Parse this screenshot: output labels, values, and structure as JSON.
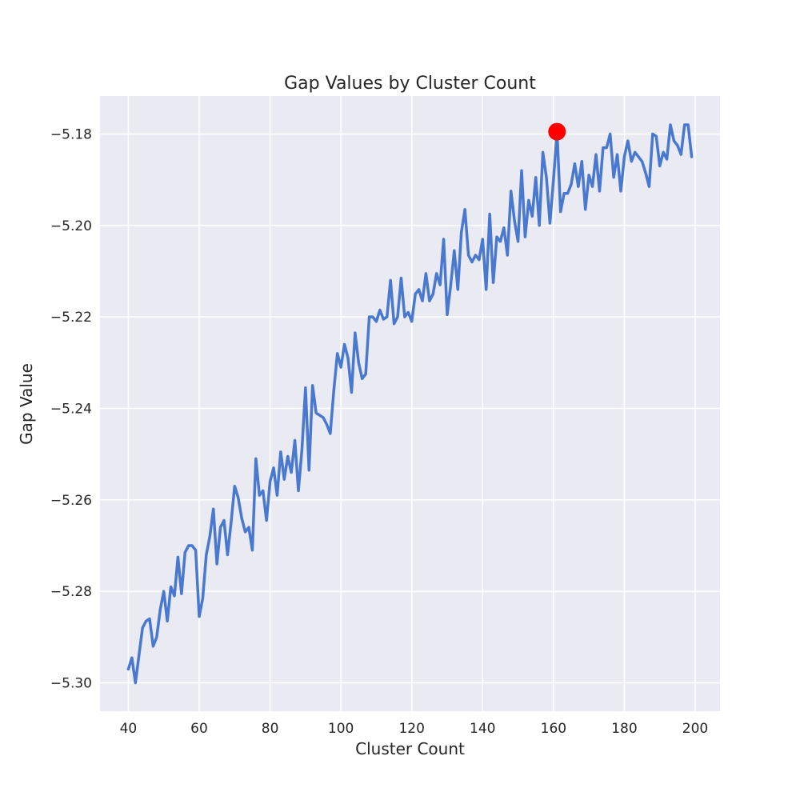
{
  "chart_data": {
    "type": "line",
    "title": "Gap Values by Cluster Count",
    "xlabel": "Cluster Count",
    "ylabel": "Gap Value",
    "xlim": [
      32,
      207
    ],
    "ylim": [
      -5.3062,
      -5.1717
    ],
    "grid": true,
    "xticks": [
      40,
      60,
      80,
      100,
      120,
      140,
      160,
      180,
      200
    ],
    "xtick_labels": [
      "40",
      "60",
      "80",
      "100",
      "120",
      "140",
      "160",
      "180",
      "200"
    ],
    "yticks": [
      -5.18,
      -5.2,
      -5.22,
      -5.24,
      -5.26,
      -5.28,
      -5.3
    ],
    "ytick_labels": [
      "−5.18",
      "−5.20",
      "−5.22",
      "−5.24",
      "−5.26",
      "−5.28",
      "−5.30"
    ],
    "colors": {
      "line": "#4878cf",
      "highlight": "#ff0000",
      "background": "#eaeaf2",
      "grid": "#ffffff"
    },
    "series": [
      {
        "x": [
          40,
          41,
          42,
          43,
          44,
          45,
          46,
          47,
          48,
          49,
          50,
          51,
          52,
          53,
          54,
          55,
          56,
          57,
          58,
          59,
          60,
          61,
          62,
          63,
          64,
          65,
          66,
          67,
          68,
          69,
          70,
          71,
          72,
          73,
          74,
          75,
          76,
          77,
          78,
          79,
          80,
          81,
          82,
          83,
          84,
          85,
          86,
          87,
          88,
          89,
          90,
          91,
          92,
          93,
          94,
          95,
          96,
          97,
          98,
          99,
          100,
          101,
          102,
          103,
          104,
          105,
          106,
          107,
          108,
          109,
          110,
          111,
          112,
          113,
          114,
          115,
          116,
          117,
          118,
          119,
          120,
          121,
          122,
          123,
          124,
          125,
          126,
          127,
          128,
          129,
          130,
          131,
          132,
          133,
          134,
          135,
          136,
          137,
          138,
          139,
          140,
          141,
          142,
          143,
          144,
          145,
          146,
          147,
          148,
          149,
          150,
          151,
          152,
          153,
          154,
          155,
          156,
          157,
          158,
          159,
          160,
          161,
          162,
          163,
          164,
          165,
          166,
          167,
          168,
          169,
          170,
          171,
          172,
          173,
          174,
          175,
          176,
          177,
          178,
          179,
          180,
          181,
          182,
          183,
          184,
          185,
          186,
          187,
          188,
          189,
          190,
          191,
          192,
          193,
          194,
          195,
          196,
          197,
          198,
          199
        ],
        "y": [
          -5.297,
          -5.2945,
          -5.3,
          -5.294,
          -5.288,
          -5.2865,
          -5.286,
          -5.292,
          -5.29,
          -5.284,
          -5.28,
          -5.2865,
          -5.279,
          -5.281,
          -5.2725,
          -5.2805,
          -5.2715,
          -5.27,
          -5.27,
          -5.271,
          -5.2855,
          -5.2815,
          -5.272,
          -5.268,
          -5.262,
          -5.274,
          -5.266,
          -5.2645,
          -5.272,
          -5.265,
          -5.257,
          -5.2595,
          -5.264,
          -5.267,
          -5.266,
          -5.271,
          -5.251,
          -5.259,
          -5.258,
          -5.2645,
          -5.256,
          -5.253,
          -5.259,
          -5.2495,
          -5.2555,
          -5.2505,
          -5.254,
          -5.247,
          -5.258,
          -5.249,
          -5.2355,
          -5.2535,
          -5.235,
          -5.241,
          -5.2415,
          -5.242,
          -5.2435,
          -5.2455,
          -5.236,
          -5.228,
          -5.231,
          -5.226,
          -5.229,
          -5.2365,
          -5.2235,
          -5.23,
          -5.2335,
          -5.2325,
          -5.22,
          -5.22,
          -5.221,
          -5.2185,
          -5.2205,
          -5.22,
          -5.212,
          -5.2215,
          -5.22,
          -5.2115,
          -5.22,
          -5.219,
          -5.221,
          -5.215,
          -5.214,
          -5.2165,
          -5.2105,
          -5.2165,
          -5.215,
          -5.2105,
          -5.213,
          -5.203,
          -5.2195,
          -5.213,
          -5.2055,
          -5.214,
          -5.2015,
          -5.1965,
          -5.2065,
          -5.208,
          -5.2065,
          -5.2075,
          -5.203,
          -5.214,
          -5.1975,
          -5.2125,
          -5.2025,
          -5.2035,
          -5.2005,
          -5.2065,
          -5.1925,
          -5.199,
          -5.2035,
          -5.188,
          -5.2025,
          -5.1945,
          -5.198,
          -5.1895,
          -5.2,
          -5.184,
          -5.1895,
          -5.1995,
          -5.19,
          -5.1795,
          -5.197,
          -5.193,
          -5.193,
          -5.191,
          -5.1865,
          -5.1915,
          -5.186,
          -5.1965,
          -5.189,
          -5.1915,
          -5.1845,
          -5.1925,
          -5.183,
          -5.183,
          -5.18,
          -5.1895,
          -5.1845,
          -5.1925,
          -5.185,
          -5.1815,
          -5.186,
          -5.184,
          -5.185,
          -5.186,
          -5.1885,
          -5.1915,
          -5.18,
          -5.1805,
          -5.187,
          -5.184,
          -5.1855,
          -5.178,
          -5.1815,
          -5.1825,
          -5.1845,
          -5.178,
          -5.178,
          -5.185
        ]
      }
    ],
    "highlight": {
      "x": 161,
      "y": -5.1795
    }
  }
}
